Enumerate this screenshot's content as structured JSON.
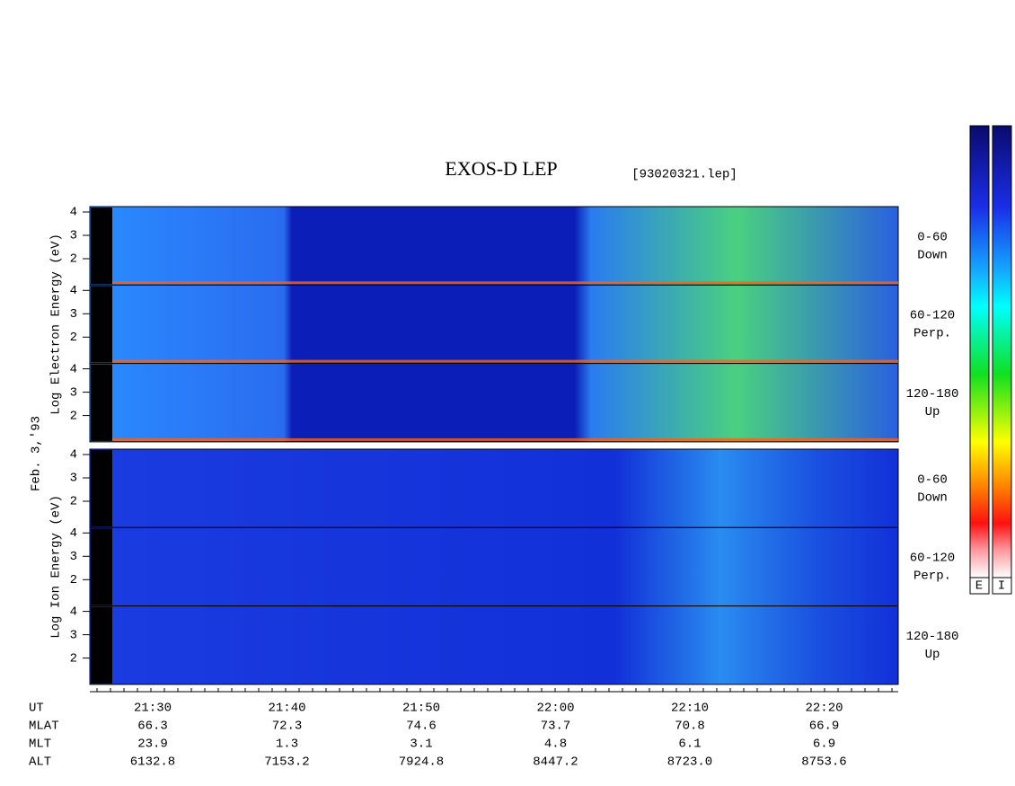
{
  "title": "EXOS-D LEP",
  "file": "[93020321.lep]",
  "date": "Feb. 3,'93",
  "panel_ticks": [
    4,
    3,
    2
  ],
  "sections": [
    {
      "axis_label": "Log Electron Energy (eV)",
      "panels": [
        {
          "angle": "0-60",
          "direction": "Down"
        },
        {
          "angle": "60-120",
          "direction": "Perp."
        },
        {
          "angle": "120-180",
          "direction": "Up"
        }
      ]
    },
    {
      "axis_label": "Log Ion Energy (eV)",
      "panels": [
        {
          "angle": "0-60",
          "direction": "Down"
        },
        {
          "angle": "60-120",
          "direction": "Perp."
        },
        {
          "angle": "120-180",
          "direction": "Up"
        }
      ]
    }
  ],
  "time_axis": {
    "rows": [
      {
        "label": "UT",
        "values": [
          "21:30",
          "21:40",
          "21:50",
          "22:00",
          "22:10",
          "22:20"
        ]
      },
      {
        "label": "MLAT",
        "values": [
          "66.3",
          "72.3",
          "74.6",
          "73.7",
          "70.8",
          "66.9"
        ]
      },
      {
        "label": "MLT",
        "values": [
          "23.9",
          "1.3",
          "3.1",
          "4.8",
          "6.1",
          "6.9"
        ]
      },
      {
        "label": "ALT",
        "values": [
          "6132.8",
          "7153.2",
          "7924.8",
          "8447.2",
          "8723.0",
          "8753.6"
        ]
      }
    ]
  },
  "colorbar_labels": [
    "E",
    "I"
  ]
}
